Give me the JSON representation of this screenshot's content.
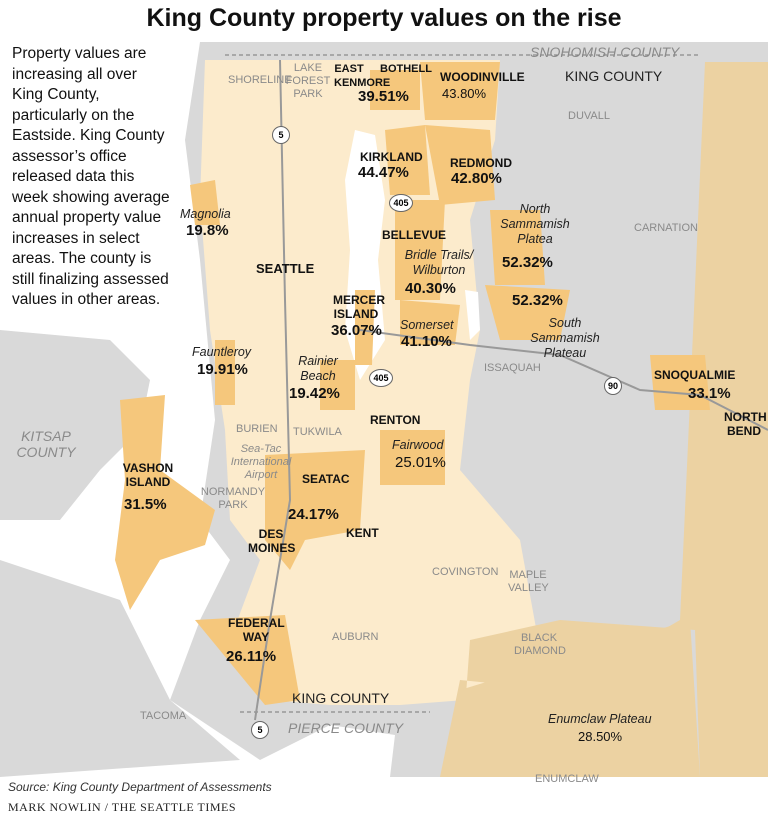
{
  "title": "King County property values on the rise",
  "intro": "Property values are increasing all over King County, particularly on the Eastside. King County assessor’s office released data this week showing average annual property value increases in select areas. The county is still finalizing assessed values in other areas.",
  "colors": {
    "water": "#ffffff",
    "land": "#d9d9d9",
    "king_county": "#fcebcc",
    "highlight": "#f5c77c",
    "rural": "#ecd2a2"
  },
  "counties": {
    "snohomish": "SNOHOMISH COUNTY",
    "king_n": "KING COUNTY",
    "king_s": "KING COUNTY",
    "pierce": "PIERCE COUNTY",
    "kitsap": "KITSAP COUNTY"
  },
  "places": {
    "shoreline": "SHORELINE",
    "lfp": "LAKE FOREST PARK",
    "duvall": "DUVALL",
    "carnation": "CARNATION",
    "issaquah": "ISSAQUAH",
    "burien": "BURIEN",
    "tukwila": "TUKWILA",
    "airport": "Sea-Tac International Airport",
    "normandy": "NORMANDY PARK",
    "covington": "COVINGTON",
    "maple": "MAPLE VALLEY",
    "auburn": "AUBURN",
    "black": "BLACK DIAMOND",
    "tacoma": "TACOMA",
    "enumclaw": "ENUMCLAW"
  },
  "areas": [
    {
      "name": "EAST KENMORE",
      "value": "39.51%"
    },
    {
      "name": "BOTHELL",
      "value": ""
    },
    {
      "name": "WOODINVILLE",
      "value": "43.80%"
    },
    {
      "name": "KIRKLAND",
      "value": "44.47%"
    },
    {
      "name": "REDMOND",
      "value": "42.80%"
    },
    {
      "name": "Magnolia",
      "value": "19.8%"
    },
    {
      "name": "BELLEVUE",
      "value": ""
    },
    {
      "name": "North Sammamish Platea",
      "value": "52.32%"
    },
    {
      "name": "Bridle Trails/ Wilburton",
      "value": "40.30%"
    },
    {
      "name": "SEATTLE",
      "value": ""
    },
    {
      "name": "MERCER ISLAND",
      "value": "36.07%"
    },
    {
      "name": "South Sammamish Plateau",
      "value": "52.32%"
    },
    {
      "name": "Somerset",
      "value": "41.10%"
    },
    {
      "name": "Fauntleroy",
      "value": "19.91%"
    },
    {
      "name": "Rainier Beach",
      "value": "19.42%"
    },
    {
      "name": "SNOQUALMIE",
      "value": "33.1%"
    },
    {
      "name": "NORTH BEND",
      "value": ""
    },
    {
      "name": "RENTON",
      "value": ""
    },
    {
      "name": "Fairwood",
      "value": "25.01%"
    },
    {
      "name": "VASHON ISLAND",
      "value": "31.5%"
    },
    {
      "name": "SEATAC",
      "value": ""
    },
    {
      "name": "",
      "value": "24.17%"
    },
    {
      "name": "KENT",
      "value": ""
    },
    {
      "name": "DES MOINES",
      "value": ""
    },
    {
      "name": "FEDERAL WAY",
      "value": "26.11%"
    },
    {
      "name": "Enumclaw Plateau",
      "value": "28.50%"
    }
  ],
  "highways": [
    "5",
    "405",
    "405",
    "90",
    "5"
  ],
  "source": "Source: King County Department of Assessments",
  "credit": "MARK NOWLIN / THE SEATTLE TIMES"
}
